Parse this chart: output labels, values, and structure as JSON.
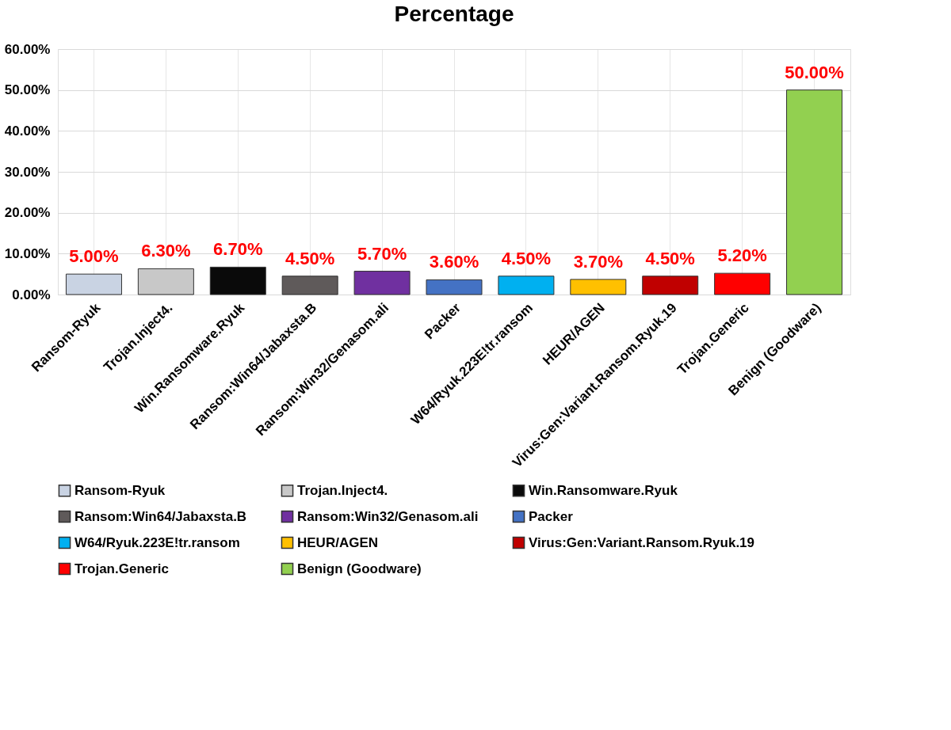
{
  "chart_data": {
    "type": "bar",
    "title": "Percentage",
    "stacked": true,
    "categories": [
      "Ransom-Ryuk",
      "Trojan.Inject4.",
      "Win.Ransomware.Ryuk",
      "Ransom:Win64/Jabaxsta.B",
      "Ransom:Win32/Genasom.ali",
      "Packer",
      "W64/Ryuk.223E!tr.ransom",
      "HEUR/AGEN",
      "Virus:Gen:Variant.Ransom.Ryuk.19",
      "Trojan.Generic",
      "Benign (Goodware)"
    ],
    "series": [
      {
        "name": "Ransom-Ryuk",
        "color": "#c9d3e3",
        "values": [
          5.0,
          null,
          null,
          null,
          null,
          null,
          null,
          null,
          null,
          null,
          null
        ],
        "value_labels": [
          "5.00%",
          null,
          null,
          null,
          null,
          null,
          null,
          null,
          null,
          null,
          null
        ]
      },
      {
        "name": "Trojan.Inject4.",
        "color": "#c8c8c8",
        "values": [
          null,
          6.3,
          null,
          null,
          null,
          null,
          null,
          null,
          null,
          null,
          null
        ],
        "value_labels": [
          null,
          "6.30%",
          null,
          null,
          null,
          null,
          null,
          null,
          null,
          null,
          null
        ]
      },
      {
        "name": "Win.Ransomware.Ryuk",
        "color": "#0a0a0a",
        "values": [
          null,
          null,
          6.7,
          null,
          null,
          null,
          null,
          null,
          null,
          null,
          null
        ],
        "value_labels": [
          null,
          null,
          "6.70%",
          null,
          null,
          null,
          null,
          null,
          null,
          null,
          null
        ]
      },
      {
        "name": "Ransom:Win64/Jabaxsta.B",
        "color": "#5f5a5a",
        "values": [
          null,
          null,
          null,
          4.5,
          null,
          null,
          null,
          null,
          null,
          null,
          null
        ],
        "value_labels": [
          null,
          null,
          null,
          "4.50%",
          null,
          null,
          null,
          null,
          null,
          null,
          null
        ]
      },
      {
        "name": "Ransom:Win32/Genasom.ali",
        "color": "#7030a0",
        "values": [
          null,
          null,
          null,
          null,
          5.7,
          null,
          null,
          null,
          null,
          null,
          null
        ],
        "value_labels": [
          null,
          null,
          null,
          null,
          "5.70%",
          null,
          null,
          null,
          null,
          null,
          null
        ]
      },
      {
        "name": "Packer",
        "color": "#4472c4",
        "values": [
          null,
          null,
          null,
          null,
          null,
          3.6,
          null,
          null,
          null,
          null,
          null
        ],
        "value_labels": [
          null,
          null,
          null,
          null,
          null,
          "3.60%",
          null,
          null,
          null,
          null,
          null
        ]
      },
      {
        "name": "W64/Ryuk.223E!tr.ransom",
        "color": "#00b0f0",
        "values": [
          null,
          null,
          null,
          null,
          null,
          null,
          4.5,
          null,
          null,
          null,
          null
        ],
        "value_labels": [
          null,
          null,
          null,
          null,
          null,
          null,
          "4.50%",
          null,
          null,
          null,
          null
        ]
      },
      {
        "name": "HEUR/AGEN",
        "color": "#ffc000",
        "values": [
          null,
          null,
          null,
          null,
          null,
          null,
          null,
          3.7,
          null,
          null,
          null
        ],
        "value_labels": [
          null,
          null,
          null,
          null,
          null,
          null,
          null,
          "3.70%",
          null,
          null,
          null
        ]
      },
      {
        "name": "Virus:Gen:Variant.Ransom.Ryuk.19",
        "color": "#c00000",
        "values": [
          null,
          null,
          null,
          null,
          null,
          null,
          null,
          null,
          4.5,
          null,
          null
        ],
        "value_labels": [
          null,
          null,
          null,
          null,
          null,
          null,
          null,
          null,
          "4.50%",
          null,
          null
        ]
      },
      {
        "name": "Trojan.Generic",
        "color": "#ff0000",
        "values": [
          null,
          null,
          null,
          null,
          null,
          null,
          null,
          null,
          null,
          5.2,
          null
        ],
        "value_labels": [
          null,
          null,
          null,
          null,
          null,
          null,
          null,
          null,
          null,
          "5.20%",
          null
        ]
      },
      {
        "name": "Benign (Goodware)",
        "color": "#92d050",
        "values": [
          null,
          null,
          null,
          null,
          null,
          null,
          null,
          null,
          null,
          null,
          50.0
        ],
        "value_labels": [
          null,
          null,
          null,
          null,
          null,
          null,
          null,
          null,
          null,
          null,
          "50.00%"
        ]
      }
    ],
    "ylim": [
      0,
      60
    ],
    "yticks": [
      {
        "value": 0,
        "label": "0.00%"
      },
      {
        "value": 10,
        "label": "10.00%"
      },
      {
        "value": 20,
        "label": "20.00%"
      },
      {
        "value": 30,
        "label": "30.00%"
      },
      {
        "value": 40,
        "label": "40.00%"
      },
      {
        "value": 50,
        "label": "50.00%"
      },
      {
        "value": 60,
        "label": "60.00%"
      }
    ],
    "grid": true,
    "legend": "bottom"
  }
}
